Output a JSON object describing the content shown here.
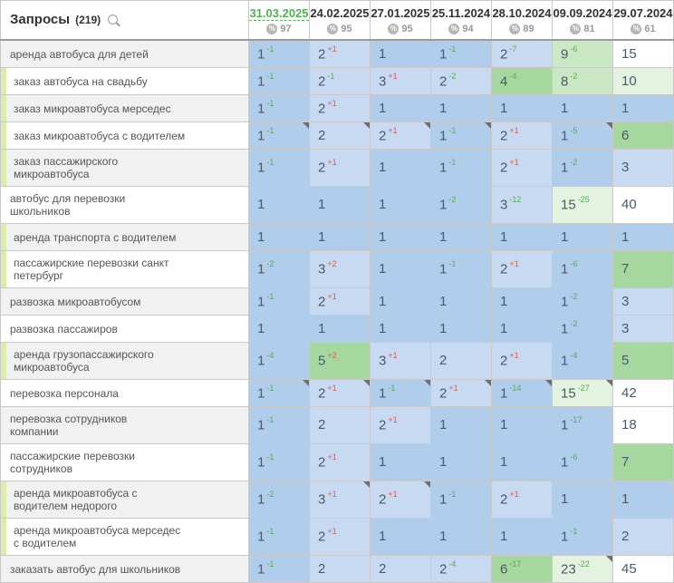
{
  "header": {
    "title": "Запросы",
    "count": "(219)",
    "columns": [
      {
        "date": "31.03.2025",
        "share": "97",
        "active": true
      },
      {
        "date": "24.02.2025",
        "share": "95",
        "active": false
      },
      {
        "date": "27.01.2025",
        "share": "95",
        "active": false
      },
      {
        "date": "25.11.2024",
        "share": "94",
        "active": false
      },
      {
        "date": "28.10.2024",
        "share": "89",
        "active": false
      },
      {
        "date": "09.09.2024",
        "share": "81",
        "active": false
      },
      {
        "date": "29.07.2024",
        "share": "61",
        "active": false
      }
    ]
  },
  "colors": {
    "cell_backgrounds": {
      "b1": "#b0cdeb",
      "b2": "#c7daf1",
      "g1": "#a5d79e",
      "g2": "#cbe8c4",
      "g3": "#e4f3e0",
      "w": "#ffffff"
    },
    "delta_good": "#55ad52",
    "delta_bad": "#e05a4e",
    "active_date": "#55b055",
    "marker_strip": "#dcecab"
  },
  "rows": [
    {
      "keyword": "аренда автобуса для детей",
      "marked": false,
      "cells": [
        {
          "pos": "1",
          "delta": "-1",
          "bg": "b1"
        },
        {
          "pos": "2",
          "delta": "+1",
          "bg": "b2"
        },
        {
          "pos": "1",
          "bg": "b1"
        },
        {
          "pos": "1",
          "delta": "-1",
          "bg": "b1"
        },
        {
          "pos": "2",
          "delta": "-7",
          "bg": "b2"
        },
        {
          "pos": "9",
          "delta": "-6",
          "bg": "g2"
        },
        {
          "pos": "15",
          "bg": "w"
        }
      ]
    },
    {
      "keyword": "заказ автобуса на свадьбу",
      "marked": true,
      "cells": [
        {
          "pos": "1",
          "delta": "-1",
          "bg": "b1"
        },
        {
          "pos": "2",
          "delta": "-1",
          "bg": "b2"
        },
        {
          "pos": "3",
          "delta": "+1",
          "bg": "b2"
        },
        {
          "pos": "2",
          "delta": "-2",
          "bg": "b2"
        },
        {
          "pos": "4",
          "delta": "-4",
          "bg": "g1"
        },
        {
          "pos": "8",
          "delta": "-2",
          "bg": "g2"
        },
        {
          "pos": "10",
          "bg": "g3"
        }
      ]
    },
    {
      "keyword": "заказ микроавтобуса мерседес",
      "marked": true,
      "cells": [
        {
          "pos": "1",
          "delta": "-1",
          "bg": "b1"
        },
        {
          "pos": "2",
          "delta": "+1",
          "bg": "b2"
        },
        {
          "pos": "1",
          "bg": "b1"
        },
        {
          "pos": "1",
          "bg": "b1"
        },
        {
          "pos": "1",
          "bg": "b1"
        },
        {
          "pos": "1",
          "bg": "b1"
        },
        {
          "pos": "1",
          "bg": "b1"
        }
      ]
    },
    {
      "keyword": "заказ микроавтобуса с водителем",
      "marked": true,
      "cells": [
        {
          "pos": "1",
          "delta": "-1",
          "bg": "b1",
          "corner": true
        },
        {
          "pos": "2",
          "bg": "b2",
          "corner": true
        },
        {
          "pos": "2",
          "delta": "+1",
          "bg": "b2",
          "corner": true
        },
        {
          "pos": "1",
          "delta": "-1",
          "bg": "b1",
          "corner": true
        },
        {
          "pos": "2",
          "delta": "+1",
          "bg": "b2"
        },
        {
          "pos": "1",
          "delta": "-5",
          "bg": "b1",
          "corner": true
        },
        {
          "pos": "6",
          "bg": "g1"
        }
      ]
    },
    {
      "keyword": "заказ пассажирского\nмикроавтобуса",
      "marked": true,
      "cells": [
        {
          "pos": "1",
          "delta": "-1",
          "bg": "b1"
        },
        {
          "pos": "2",
          "delta": "+1",
          "bg": "b2"
        },
        {
          "pos": "1",
          "bg": "b1"
        },
        {
          "pos": "1",
          "delta": "-1",
          "bg": "b1"
        },
        {
          "pos": "2",
          "delta": "+1",
          "bg": "b2"
        },
        {
          "pos": "1",
          "delta": "-2",
          "bg": "b1"
        },
        {
          "pos": "3",
          "bg": "b2"
        }
      ]
    },
    {
      "keyword": "автобус для перевозки\nшкольников",
      "marked": false,
      "cells": [
        {
          "pos": "1",
          "bg": "b1"
        },
        {
          "pos": "1",
          "bg": "b1"
        },
        {
          "pos": "1",
          "bg": "b1"
        },
        {
          "pos": "1",
          "delta": "-2",
          "bg": "b1"
        },
        {
          "pos": "3",
          "delta": "-12",
          "bg": "b2"
        },
        {
          "pos": "15",
          "delta": "-25",
          "bg": "g3"
        },
        {
          "pos": "40",
          "bg": "w"
        }
      ]
    },
    {
      "keyword": "аренда транспорта с водителем",
      "marked": true,
      "cells": [
        {
          "pos": "1",
          "bg": "b1"
        },
        {
          "pos": "1",
          "bg": "b1"
        },
        {
          "pos": "1",
          "bg": "b1"
        },
        {
          "pos": "1",
          "bg": "b1"
        },
        {
          "pos": "1",
          "bg": "b1"
        },
        {
          "pos": "1",
          "bg": "b1"
        },
        {
          "pos": "1",
          "bg": "b1"
        }
      ]
    },
    {
      "keyword": "пассажирские перевозки санкт\nпетербург",
      "marked": true,
      "cells": [
        {
          "pos": "1",
          "delta": "-2",
          "bg": "b1"
        },
        {
          "pos": "3",
          "delta": "+2",
          "bg": "b2"
        },
        {
          "pos": "1",
          "bg": "b1"
        },
        {
          "pos": "1",
          "delta": "-1",
          "bg": "b1"
        },
        {
          "pos": "2",
          "delta": "+1",
          "bg": "b2"
        },
        {
          "pos": "1",
          "delta": "-6",
          "bg": "b1"
        },
        {
          "pos": "7",
          "bg": "g1"
        }
      ]
    },
    {
      "keyword": "развозка микроавтобусом",
      "marked": false,
      "cells": [
        {
          "pos": "1",
          "delta": "-1",
          "bg": "b1"
        },
        {
          "pos": "2",
          "delta": "+1",
          "bg": "b2"
        },
        {
          "pos": "1",
          "bg": "b1"
        },
        {
          "pos": "1",
          "bg": "b1"
        },
        {
          "pos": "1",
          "bg": "b1"
        },
        {
          "pos": "1",
          "delta": "-2",
          "bg": "b1"
        },
        {
          "pos": "3",
          "bg": "b2"
        }
      ]
    },
    {
      "keyword": "развозка пассажиров",
      "marked": false,
      "cells": [
        {
          "pos": "1",
          "bg": "b1"
        },
        {
          "pos": "1",
          "bg": "b1"
        },
        {
          "pos": "1",
          "bg": "b1"
        },
        {
          "pos": "1",
          "bg": "b1"
        },
        {
          "pos": "1",
          "bg": "b1"
        },
        {
          "pos": "1",
          "delta": "-2",
          "bg": "b1"
        },
        {
          "pos": "3",
          "bg": "b2"
        }
      ]
    },
    {
      "keyword": "аренда грузопассажирского\nмикроавтобуса",
      "marked": true,
      "cells": [
        {
          "pos": "1",
          "delta": "-4",
          "bg": "b1"
        },
        {
          "pos": "5",
          "delta": "+2",
          "bg": "g1"
        },
        {
          "pos": "3",
          "delta": "+1",
          "bg": "b2"
        },
        {
          "pos": "2",
          "bg": "b2"
        },
        {
          "pos": "2",
          "delta": "+1",
          "bg": "b2"
        },
        {
          "pos": "1",
          "delta": "-4",
          "bg": "b1"
        },
        {
          "pos": "5",
          "bg": "g1"
        }
      ]
    },
    {
      "keyword": "перевозка персонала",
      "marked": false,
      "cells": [
        {
          "pos": "1",
          "delta": "-1",
          "bg": "b1",
          "corner": true
        },
        {
          "pos": "2",
          "delta": "+1",
          "bg": "b2",
          "corner": true
        },
        {
          "pos": "1",
          "delta": "-1",
          "bg": "b1",
          "corner": true
        },
        {
          "pos": "2",
          "delta": "+1",
          "bg": "b2",
          "corner": true
        },
        {
          "pos": "1",
          "delta": "-14",
          "bg": "b1",
          "corner": true
        },
        {
          "pos": "15",
          "delta": "-27",
          "bg": "g3",
          "corner": true
        },
        {
          "pos": "42",
          "bg": "w"
        }
      ]
    },
    {
      "keyword": "перевозка сотрудников\nкомпании",
      "marked": false,
      "cells": [
        {
          "pos": "1",
          "delta": "-1",
          "bg": "b1"
        },
        {
          "pos": "2",
          "bg": "b2"
        },
        {
          "pos": "2",
          "delta": "+1",
          "bg": "b2"
        },
        {
          "pos": "1",
          "bg": "b1"
        },
        {
          "pos": "1",
          "bg": "b1"
        },
        {
          "pos": "1",
          "delta": "-17",
          "bg": "b1"
        },
        {
          "pos": "18",
          "bg": "w"
        }
      ]
    },
    {
      "keyword": "пассажирские перевозки\nсотрудников",
      "marked": false,
      "cells": [
        {
          "pos": "1",
          "delta": "-1",
          "bg": "b1"
        },
        {
          "pos": "2",
          "delta": "+1",
          "bg": "b2"
        },
        {
          "pos": "1",
          "bg": "b1"
        },
        {
          "pos": "1",
          "bg": "b1"
        },
        {
          "pos": "1",
          "bg": "b1"
        },
        {
          "pos": "1",
          "delta": "-6",
          "bg": "b1"
        },
        {
          "pos": "7",
          "bg": "g1"
        }
      ]
    },
    {
      "keyword": "аренда микроавтобуса с\nводителем недорого",
      "marked": true,
      "cells": [
        {
          "pos": "1",
          "delta": "-2",
          "bg": "b1"
        },
        {
          "pos": "3",
          "delta": "+1",
          "bg": "b2",
          "corner": true
        },
        {
          "pos": "2",
          "delta": "+1",
          "bg": "b2",
          "corner": true
        },
        {
          "pos": "1",
          "delta": "-1",
          "bg": "b1"
        },
        {
          "pos": "2",
          "delta": "+1",
          "bg": "b2"
        },
        {
          "pos": "1",
          "bg": "b1"
        },
        {
          "pos": "1",
          "bg": "b1"
        }
      ]
    },
    {
      "keyword": "аренда микроавтобуса мерседес\nс водителем",
      "marked": true,
      "cells": [
        {
          "pos": "1",
          "delta": "-1",
          "bg": "b1"
        },
        {
          "pos": "2",
          "delta": "+1",
          "bg": "b2"
        },
        {
          "pos": "1",
          "bg": "b1"
        },
        {
          "pos": "1",
          "bg": "b1"
        },
        {
          "pos": "1",
          "bg": "b1"
        },
        {
          "pos": "1",
          "delta": "-1",
          "bg": "b1"
        },
        {
          "pos": "2",
          "bg": "b2"
        }
      ]
    },
    {
      "keyword": "заказать автобус для школьников",
      "marked": false,
      "cells": [
        {
          "pos": "1",
          "delta": "-1",
          "bg": "b1"
        },
        {
          "pos": "2",
          "bg": "b2"
        },
        {
          "pos": "2",
          "bg": "b2"
        },
        {
          "pos": "2",
          "delta": "-4",
          "bg": "b2"
        },
        {
          "pos": "6",
          "delta": "-17",
          "bg": "g1"
        },
        {
          "pos": "23",
          "delta": "-22",
          "bg": "g3",
          "corner": true
        },
        {
          "pos": "45",
          "bg": "w"
        }
      ]
    }
  ]
}
